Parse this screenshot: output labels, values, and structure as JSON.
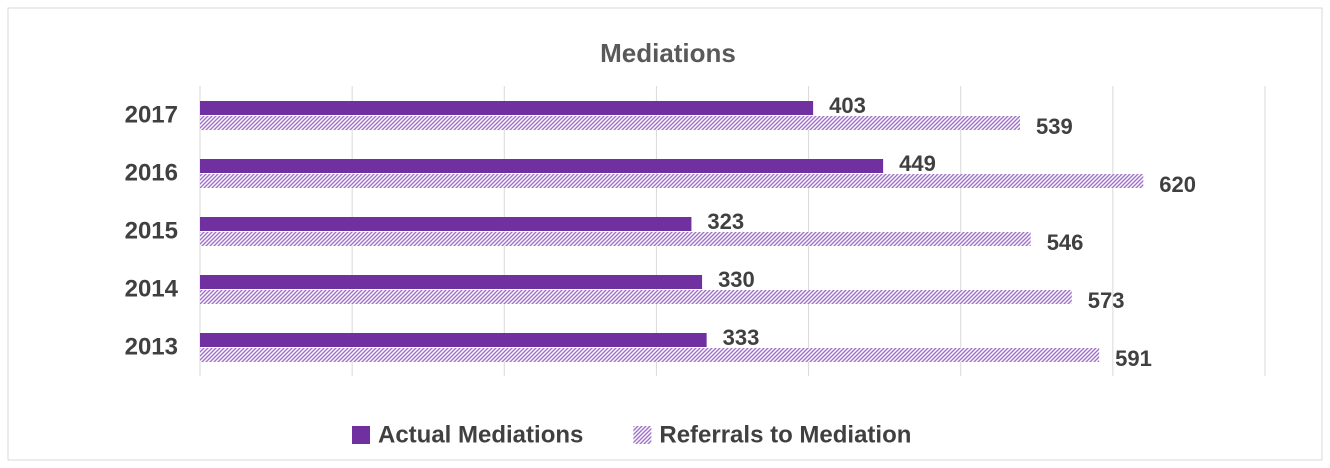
{
  "chart_data": {
    "type": "hbar",
    "title": "Mediations",
    "categories": [
      "2017",
      "2016",
      "2015",
      "2014",
      "2013"
    ],
    "series": [
      {
        "name": "Actual Mediations",
        "color": "#7030a0",
        "values": [
          403,
          449,
          323,
          330,
          333
        ]
      },
      {
        "name": "Referrals to Mediation",
        "color": "#9e70c8",
        "pattern": "hatched",
        "values": [
          539,
          620,
          546,
          573,
          591
        ]
      }
    ],
    "xlim": [
      0,
      700
    ],
    "xticks": [
      0,
      100,
      200,
      300,
      400,
      500,
      600,
      700
    ],
    "grid": true,
    "legend": "bottom"
  }
}
